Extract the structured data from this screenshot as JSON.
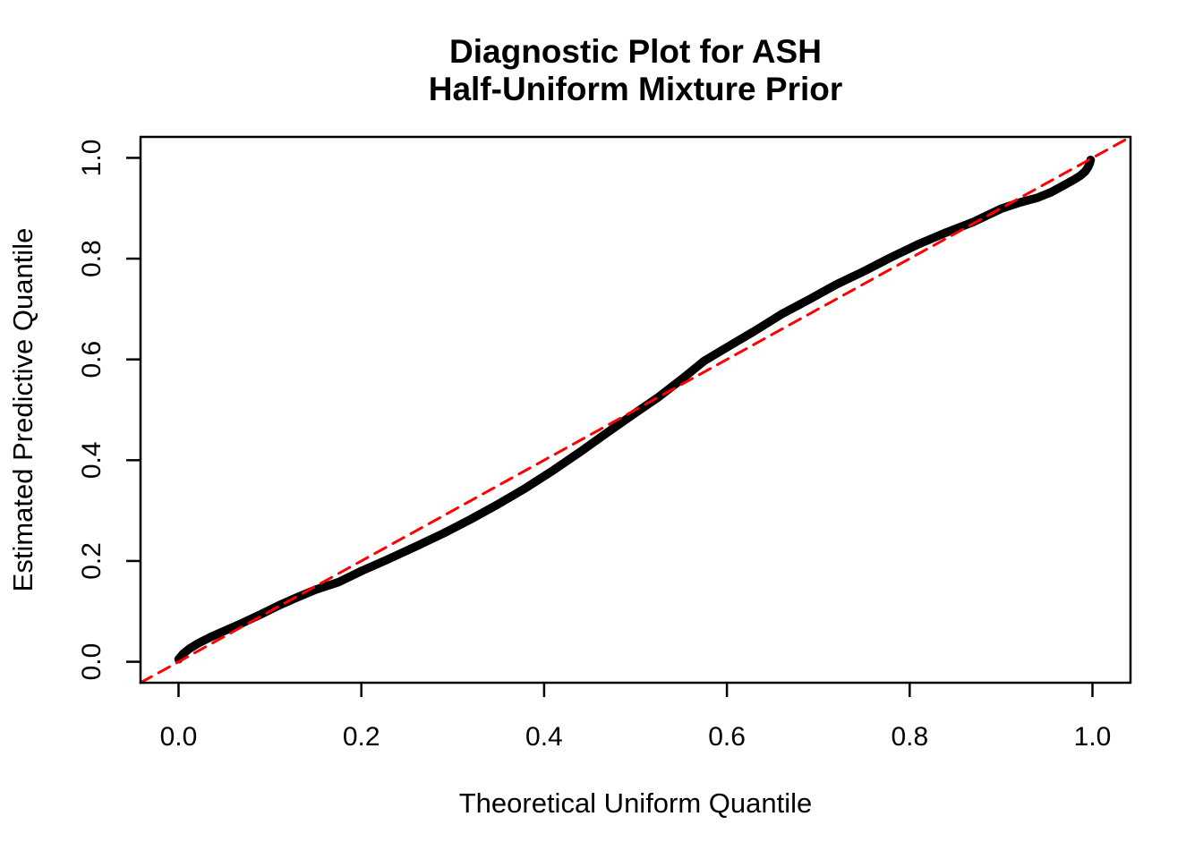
{
  "figure": {
    "background": "#FFFFFF",
    "frame_color": "#000000"
  },
  "chart_data": {
    "type": "line",
    "subtype": "qq-plot-diagnostic",
    "title_lines": [
      "Diagnostic Plot for ASH",
      "Half-Uniform Mixture Prior"
    ],
    "xlabel": "Theoretical Uniform Quantile",
    "ylabel": "Estimated Predictive Quantile",
    "xlim": [
      -0.0416,
      1.0416
    ],
    "ylim": [
      -0.0416,
      1.0416
    ],
    "grid": false,
    "legend": "none",
    "x_ticks": {
      "values": [
        0.0,
        0.2,
        0.4,
        0.6,
        0.8,
        1.0
      ],
      "labels": [
        "0.0",
        "0.2",
        "0.4",
        "0.6",
        "0.8",
        "1.0"
      ]
    },
    "y_ticks": {
      "values": [
        0.0,
        0.2,
        0.4,
        0.6,
        0.8,
        1.0
      ],
      "labels": [
        "0.0",
        "0.2",
        "0.4",
        "0.6",
        "0.8",
        "1.0"
      ]
    },
    "series": [
      {
        "name": "estimated-predictive-quantiles",
        "description": "Dense curve of plotted quantile points (appears as a thick black line)",
        "type": "scatter-curve",
        "color": "#000000",
        "line_width": 9.5,
        "points": [
          [
            0.0,
            0.005
          ],
          [
            0.005,
            0.016
          ],
          [
            0.012,
            0.026
          ],
          [
            0.022,
            0.037
          ],
          [
            0.035,
            0.049
          ],
          [
            0.05,
            0.061
          ],
          [
            0.07,
            0.077
          ],
          [
            0.09,
            0.094
          ],
          [
            0.11,
            0.112
          ],
          [
            0.13,
            0.128
          ],
          [
            0.15,
            0.143
          ],
          [
            0.175,
            0.158
          ],
          [
            0.2,
            0.18
          ],
          [
            0.23,
            0.204
          ],
          [
            0.26,
            0.229
          ],
          [
            0.29,
            0.255
          ],
          [
            0.32,
            0.283
          ],
          [
            0.35,
            0.313
          ],
          [
            0.38,
            0.345
          ],
          [
            0.41,
            0.38
          ],
          [
            0.44,
            0.417
          ],
          [
            0.47,
            0.456
          ],
          [
            0.5,
            0.494
          ],
          [
            0.525,
            0.525
          ],
          [
            0.55,
            0.56
          ],
          [
            0.575,
            0.597
          ],
          [
            0.6,
            0.624
          ],
          [
            0.63,
            0.656
          ],
          [
            0.66,
            0.69
          ],
          [
            0.69,
            0.719
          ],
          [
            0.72,
            0.749
          ],
          [
            0.75,
            0.775
          ],
          [
            0.78,
            0.803
          ],
          [
            0.81,
            0.829
          ],
          [
            0.84,
            0.852
          ],
          [
            0.87,
            0.873
          ],
          [
            0.9,
            0.899
          ],
          [
            0.92,
            0.911
          ],
          [
            0.94,
            0.921
          ],
          [
            0.955,
            0.932
          ],
          [
            0.97,
            0.947
          ],
          [
            0.98,
            0.957
          ],
          [
            0.987,
            0.965
          ],
          [
            0.992,
            0.973
          ],
          [
            0.995,
            0.981
          ],
          [
            0.997,
            0.989
          ],
          [
            0.998,
            0.996
          ]
        ]
      },
      {
        "name": "reference-diagonal",
        "description": "y = x reference line",
        "type": "line",
        "style": "dashed",
        "color": "#FF0000",
        "line_width": 3,
        "dash": [
          14,
          9
        ],
        "points": [
          [
            -0.0416,
            -0.0416
          ],
          [
            1.0416,
            1.0416
          ]
        ]
      }
    ]
  }
}
